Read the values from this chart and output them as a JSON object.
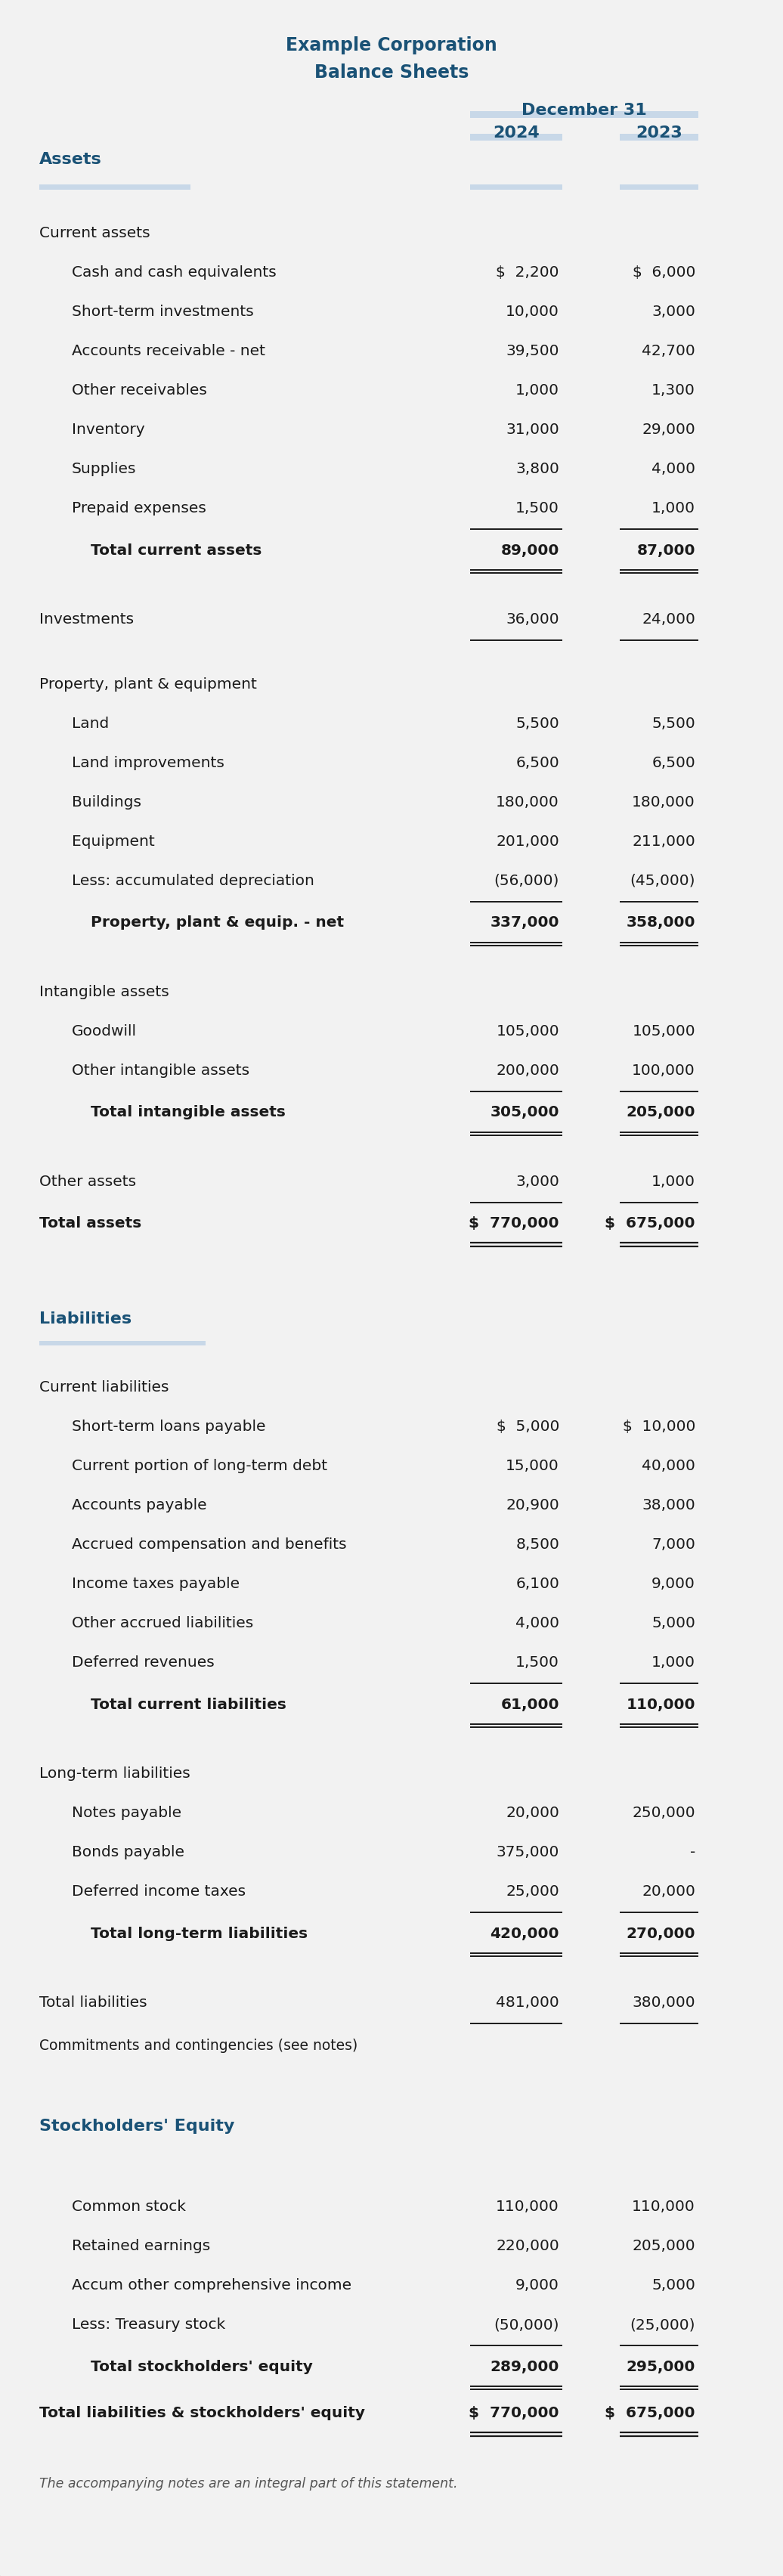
{
  "title1": "Example Corporation",
  "title2": "Balance Sheets",
  "date_header": "December 31",
  "col2024": "2024",
  "col2023": "2023",
  "bg_color": "#f2f2f2",
  "title_color": "#1a5276",
  "header_color": "#1a5276",
  "section_color": "#1a5276",
  "text_color": "#1a1a1a",
  "note_color": "#555555",
  "bar_color": "#c8d8e8",
  "rows": [
    {
      "label": "Assets",
      "val2024": "",
      "val2023": "",
      "type": "header_assets",
      "indent": 0
    },
    {
      "label": "",
      "val2024": "",
      "val2023": "",
      "type": "assets_rule",
      "indent": 0
    },
    {
      "label": "",
      "val2024": "",
      "val2023": "",
      "type": "spacer",
      "indent": 0
    },
    {
      "label": "Current assets",
      "val2024": "",
      "val2023": "",
      "type": "subheader",
      "indent": 0
    },
    {
      "label": "Cash and cash equivalents",
      "val2024": "$  2,200",
      "val2023": "$  6,000",
      "type": "data",
      "indent": 1
    },
    {
      "label": "Short-term investments",
      "val2024": "10,000",
      "val2023": "3,000",
      "type": "data",
      "indent": 1
    },
    {
      "label": "Accounts receivable - net",
      "val2024": "39,500",
      "val2023": "42,700",
      "type": "data",
      "indent": 1
    },
    {
      "label": "Other receivables",
      "val2024": "1,000",
      "val2023": "1,300",
      "type": "data",
      "indent": 1
    },
    {
      "label": "Inventory",
      "val2024": "31,000",
      "val2023": "29,000",
      "type": "data",
      "indent": 1
    },
    {
      "label": "Supplies",
      "val2024": "3,800",
      "val2023": "4,000",
      "type": "data",
      "indent": 1
    },
    {
      "label": "Prepaid expenses",
      "val2024": "1,500",
      "val2023": "1,000",
      "type": "data_underline",
      "indent": 1
    },
    {
      "label": "Total current assets",
      "val2024": "89,000",
      "val2023": "87,000",
      "type": "total_double",
      "indent": 2
    },
    {
      "label": "",
      "val2024": "",
      "val2023": "",
      "type": "spacer",
      "indent": 0
    },
    {
      "label": "Investments",
      "val2024": "36,000",
      "val2023": "24,000",
      "type": "data_underline2",
      "indent": 0
    },
    {
      "label": "",
      "val2024": "",
      "val2023": "",
      "type": "spacer",
      "indent": 0
    },
    {
      "label": "Property, plant & equipment",
      "val2024": "",
      "val2023": "",
      "type": "subheader",
      "indent": 0
    },
    {
      "label": "Land",
      "val2024": "5,500",
      "val2023": "5,500",
      "type": "data",
      "indent": 1
    },
    {
      "label": "Land improvements",
      "val2024": "6,500",
      "val2023": "6,500",
      "type": "data",
      "indent": 1
    },
    {
      "label": "Buildings",
      "val2024": "180,000",
      "val2023": "180,000",
      "type": "data",
      "indent": 1
    },
    {
      "label": "Equipment",
      "val2024": "201,000",
      "val2023": "211,000",
      "type": "data",
      "indent": 1
    },
    {
      "label": "Less: accumulated depreciation",
      "val2024": "(56,000)",
      "val2023": "(45,000)",
      "type": "data_underline",
      "indent": 1
    },
    {
      "label": "Property, plant & equip. - net",
      "val2024": "337,000",
      "val2023": "358,000",
      "type": "total_double",
      "indent": 2
    },
    {
      "label": "",
      "val2024": "",
      "val2023": "",
      "type": "spacer",
      "indent": 0
    },
    {
      "label": "Intangible assets",
      "val2024": "",
      "val2023": "",
      "type": "subheader",
      "indent": 0
    },
    {
      "label": "Goodwill",
      "val2024": "105,000",
      "val2023": "105,000",
      "type": "data",
      "indent": 1
    },
    {
      "label": "Other intangible assets",
      "val2024": "200,000",
      "val2023": "100,000",
      "type": "data_underline",
      "indent": 1
    },
    {
      "label": "Total intangible assets",
      "val2024": "305,000",
      "val2023": "205,000",
      "type": "total_double",
      "indent": 2
    },
    {
      "label": "",
      "val2024": "",
      "val2023": "",
      "type": "spacer",
      "indent": 0
    },
    {
      "label": "Other assets",
      "val2024": "3,000",
      "val2023": "1,000",
      "type": "data_underline",
      "indent": 0
    },
    {
      "label": "Total assets",
      "val2024": "$  770,000",
      "val2023": "$  675,000",
      "type": "grand_total",
      "indent": 0
    },
    {
      "label": "",
      "val2024": "",
      "val2023": "",
      "type": "spacer_large",
      "indent": 0
    },
    {
      "label": "Liabilities",
      "val2024": "",
      "val2023": "",
      "type": "section_header",
      "indent": 0
    },
    {
      "label": "",
      "val2024": "",
      "val2023": "",
      "type": "section_rule",
      "indent": 0
    },
    {
      "label": "",
      "val2024": "",
      "val2023": "",
      "type": "spacer",
      "indent": 0
    },
    {
      "label": "Current liabilities",
      "val2024": "",
      "val2023": "",
      "type": "subheader",
      "indent": 0
    },
    {
      "label": "Short-term loans payable",
      "val2024": "$  5,000",
      "val2023": "$  10,000",
      "type": "data",
      "indent": 1
    },
    {
      "label": "Current portion of long-term debt",
      "val2024": "15,000",
      "val2023": "40,000",
      "type": "data",
      "indent": 1
    },
    {
      "label": "Accounts payable",
      "val2024": "20,900",
      "val2023": "38,000",
      "type": "data",
      "indent": 1
    },
    {
      "label": "Accrued compensation and benefits",
      "val2024": "8,500",
      "val2023": "7,000",
      "type": "data",
      "indent": 1
    },
    {
      "label": "Income taxes payable",
      "val2024": "6,100",
      "val2023": "9,000",
      "type": "data",
      "indent": 1
    },
    {
      "label": "Other accrued liabilities",
      "val2024": "4,000",
      "val2023": "5,000",
      "type": "data",
      "indent": 1
    },
    {
      "label": "Deferred revenues",
      "val2024": "1,500",
      "val2023": "1,000",
      "type": "data_underline",
      "indent": 1
    },
    {
      "label": "Total current liabilities",
      "val2024": "61,000",
      "val2023": "110,000",
      "type": "total_double",
      "indent": 2
    },
    {
      "label": "",
      "val2024": "",
      "val2023": "",
      "type": "spacer",
      "indent": 0
    },
    {
      "label": "Long-term liabilities",
      "val2024": "",
      "val2023": "",
      "type": "subheader",
      "indent": 0
    },
    {
      "label": "Notes payable",
      "val2024": "20,000",
      "val2023": "250,000",
      "type": "data",
      "indent": 1
    },
    {
      "label": "Bonds payable",
      "val2024": "375,000",
      "val2023": "-",
      "type": "data",
      "indent": 1
    },
    {
      "label": "Deferred income taxes",
      "val2024": "25,000",
      "val2023": "20,000",
      "type": "data_underline",
      "indent": 1
    },
    {
      "label": "Total long-term liabilities",
      "val2024": "420,000",
      "val2023": "270,000",
      "type": "total_double",
      "indent": 2
    },
    {
      "label": "",
      "val2024": "",
      "val2023": "",
      "type": "spacer",
      "indent": 0
    },
    {
      "label": "Total liabilities",
      "val2024": "481,000",
      "val2023": "380,000",
      "type": "total_single",
      "indent": 0
    },
    {
      "label": "Commitments and contingencies (see notes)",
      "val2024": "",
      "val2023": "",
      "type": "note_line",
      "indent": 0
    },
    {
      "label": "",
      "val2024": "",
      "val2023": "",
      "type": "spacer_large",
      "indent": 0
    },
    {
      "label": "Stockholders' Equity",
      "val2024": "",
      "val2023": "",
      "type": "section_header",
      "indent": 0
    },
    {
      "label": "",
      "val2024": "",
      "val2023": "",
      "type": "spacer",
      "indent": 0
    },
    {
      "label": "",
      "val2024": "",
      "val2023": "",
      "type": "spacer",
      "indent": 0
    },
    {
      "label": "Common stock",
      "val2024": "110,000",
      "val2023": "110,000",
      "type": "data",
      "indent": 1
    },
    {
      "label": "Retained earnings",
      "val2024": "220,000",
      "val2023": "205,000",
      "type": "data",
      "indent": 1
    },
    {
      "label": "Accum other comprehensive income",
      "val2024": "9,000",
      "val2023": "5,000",
      "type": "data",
      "indent": 1
    },
    {
      "label": "Less: Treasury stock",
      "val2024": "(50,000)",
      "val2023": "(25,000)",
      "type": "data_underline",
      "indent": 1
    },
    {
      "label": "Total stockholders' equity",
      "val2024": "289,000",
      "val2023": "295,000",
      "type": "total_double",
      "indent": 2
    },
    {
      "label": "Total liabilities & stockholders' equity",
      "val2024": "$  770,000",
      "val2023": "$  675,000",
      "type": "grand_total",
      "indent": 0
    },
    {
      "label": "",
      "val2024": "",
      "val2023": "",
      "type": "spacer",
      "indent": 0
    },
    {
      "label": "The accompanying notes are an integral part of this statement.",
      "val2024": "",
      "val2023": "",
      "type": "footer",
      "indent": 0
    }
  ]
}
